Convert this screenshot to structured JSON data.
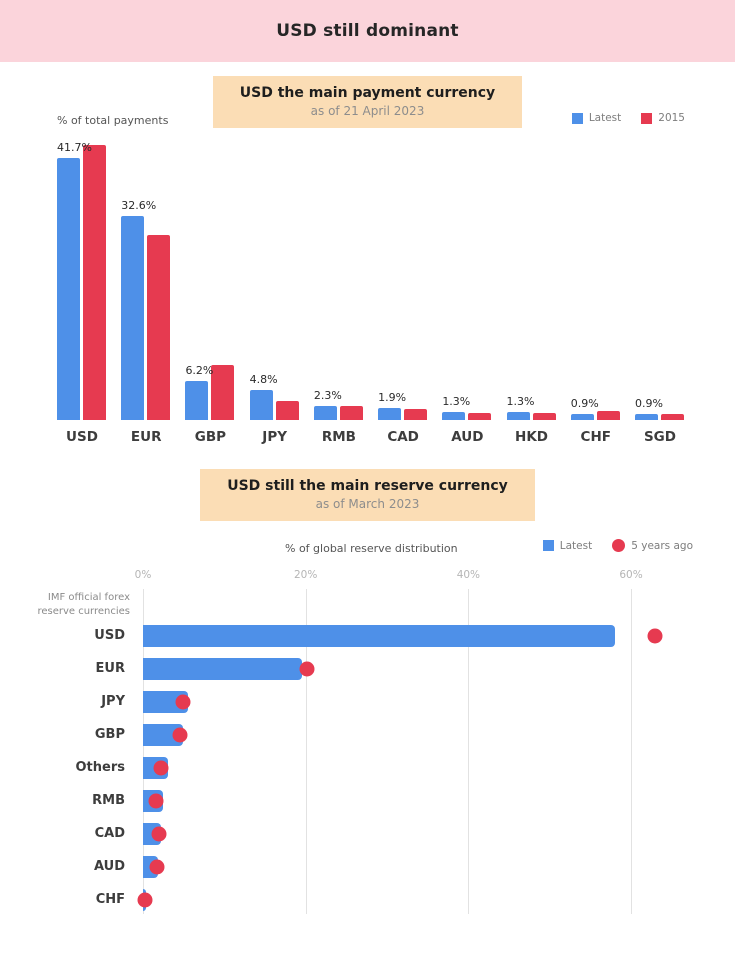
{
  "page": {
    "title": "USD still dominant"
  },
  "colors": {
    "blue": "#4E90E8",
    "red": "#E63A50",
    "pink_banner": "#FBD4DB",
    "peach_banner": "#FBDDB5"
  },
  "chart_data": [
    {
      "type": "bar",
      "orientation": "vertical",
      "title": "USD the main payment currency",
      "subtitle": "as of 21 April 2023",
      "axis_note": "% of total payments",
      "legend": [
        {
          "label": "Latest",
          "shape": "square",
          "color": "#4E90E8"
        },
        {
          "label": "2015",
          "shape": "square",
          "color": "#E63A50"
        }
      ],
      "categories": [
        "USD",
        "EUR",
        "GBP",
        "JPY",
        "RMB",
        "CAD",
        "AUD",
        "HKD",
        "CHF",
        "SGD"
      ],
      "series": [
        {
          "name": "Latest",
          "values": [
            41.7,
            32.6,
            6.2,
            4.8,
            2.3,
            1.9,
            1.3,
            1.3,
            0.9,
            0.9
          ]
        },
        {
          "name": "2015",
          "values": [
            43.9,
            29.5,
            8.7,
            3.1,
            2.2,
            1.8,
            1.2,
            1.1,
            1.4,
            0.9
          ]
        }
      ],
      "data_labels": [
        "41.7%",
        "32.6%",
        "6.2%",
        "4.8%",
        "2.3%",
        "1.9%",
        "1.3%",
        "1.3%",
        "0.9%",
        "0.9%"
      ],
      "ylim": [
        0,
        44
      ],
      "grid": false,
      "legend_position": "top-right"
    },
    {
      "type": "bar",
      "orientation": "horizontal",
      "title": "USD still the main reserve currency",
      "subtitle": "as of March 2023",
      "axis_note": "% of global reserve distribution",
      "side_note": "IMF official forex reserve currencies",
      "legend": [
        {
          "label": "Latest",
          "shape": "square",
          "color": "#4E90E8"
        },
        {
          "label": "5 years ago",
          "shape": "circle",
          "color": "#E63A50"
        }
      ],
      "categories": [
        "USD",
        "EUR",
        "JPY",
        "GBP",
        "Others",
        "RMB",
        "CAD",
        "AUD",
        "CHF"
      ],
      "series": [
        {
          "name": "Latest",
          "style": "bar",
          "values": [
            58,
            19.5,
            5.5,
            4.9,
            3.1,
            2.4,
            2.2,
            1.9,
            0.25
          ]
        },
        {
          "name": "5 years ago",
          "style": "dot",
          "values": [
            63,
            20.1,
            4.9,
            4.5,
            2.2,
            1.6,
            2.0,
            1.7,
            0.2
          ]
        }
      ],
      "xticks": {
        "labels": [
          "0%",
          "20%",
          "40%",
          "60%"
        ],
        "values": [
          0,
          20,
          40,
          60
        ]
      },
      "xlim": [
        0,
        67
      ],
      "grid": true,
      "legend_position": "top-right"
    }
  ]
}
